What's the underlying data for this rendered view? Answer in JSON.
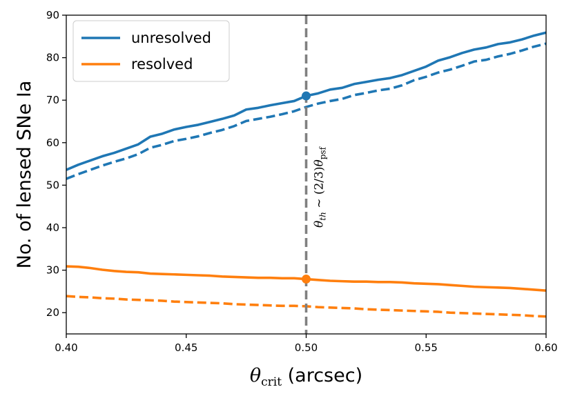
{
  "chart_data": {
    "type": "line",
    "title": "",
    "xlabel_math": "θ",
    "xlabel_sub": "crit",
    "xlabel_unit": " (arcsec)",
    "ylabel": "No. of lensed SNe Ia",
    "xlim": [
      0.4,
      0.6
    ],
    "ylim": [
      15,
      90
    ],
    "xticks": [
      0.4,
      0.45,
      0.5,
      0.55,
      0.6
    ],
    "xtick_labels": [
      "0.40",
      "0.45",
      "0.50",
      "0.55",
      "0.60"
    ],
    "yticks": [
      20,
      30,
      40,
      50,
      60,
      70,
      80,
      90
    ],
    "ytick_labels": [
      "20",
      "30",
      "40",
      "50",
      "60",
      "70",
      "80",
      "90"
    ],
    "grid": false,
    "legend_position": "top-left",
    "legend": [
      {
        "label": "unresolved",
        "color": "#1f77b4"
      },
      {
        "label": "resolved",
        "color": "#ff7f0e"
      }
    ],
    "x": [
      0.4,
      0.405,
      0.41,
      0.415,
      0.42,
      0.425,
      0.43,
      0.435,
      0.44,
      0.445,
      0.45,
      0.455,
      0.46,
      0.465,
      0.47,
      0.475,
      0.48,
      0.485,
      0.49,
      0.495,
      0.5,
      0.505,
      0.51,
      0.515,
      0.52,
      0.525,
      0.53,
      0.535,
      0.54,
      0.545,
      0.55,
      0.555,
      0.56,
      0.565,
      0.57,
      0.575,
      0.58,
      0.585,
      0.59,
      0.595,
      0.6
    ],
    "series": [
      {
        "name": "unresolved",
        "color": "#1f77b4",
        "style": "solid",
        "values": [
          53.6,
          54.8,
          55.8,
          56.8,
          57.6,
          58.6,
          59.6,
          61.4,
          62.1,
          63.1,
          63.7,
          64.2,
          64.9,
          65.6,
          66.4,
          67.8,
          68.2,
          68.8,
          69.3,
          69.8,
          71.0,
          71.6,
          72.5,
          72.9,
          73.8,
          74.3,
          74.8,
          75.2,
          75.9,
          76.9,
          77.9,
          79.3,
          80.1,
          81.1,
          81.9,
          82.4,
          83.2,
          83.6,
          84.3,
          85.2,
          85.9
        ]
      },
      {
        "name": "unresolved (dashed)",
        "color": "#1f77b4",
        "style": "dashed",
        "values": [
          51.5,
          52.6,
          53.6,
          54.6,
          55.5,
          56.3,
          57.3,
          58.8,
          59.5,
          60.4,
          60.9,
          61.5,
          62.3,
          63.0,
          63.9,
          65.1,
          65.6,
          66.1,
          66.7,
          67.4,
          68.4,
          69.2,
          69.8,
          70.3,
          71.2,
          71.7,
          72.3,
          72.7,
          73.5,
          74.7,
          75.5,
          76.5,
          77.2,
          78.1,
          79.1,
          79.5,
          80.3,
          80.9,
          81.7,
          82.6,
          83.3
        ]
      },
      {
        "name": "resolved",
        "color": "#ff7f0e",
        "style": "solid",
        "values": [
          30.9,
          30.8,
          30.5,
          30.1,
          29.8,
          29.6,
          29.5,
          29.2,
          29.1,
          29.0,
          28.9,
          28.8,
          28.7,
          28.5,
          28.4,
          28.3,
          28.2,
          28.2,
          28.1,
          28.1,
          27.9,
          27.7,
          27.5,
          27.4,
          27.3,
          27.3,
          27.2,
          27.2,
          27.1,
          26.9,
          26.8,
          26.7,
          26.5,
          26.3,
          26.1,
          26.0,
          25.9,
          25.8,
          25.6,
          25.4,
          25.2
        ]
      },
      {
        "name": "resolved (dashed)",
        "color": "#ff7f0e",
        "style": "dashed",
        "values": [
          23.9,
          23.7,
          23.6,
          23.4,
          23.3,
          23.1,
          23.0,
          22.9,
          22.8,
          22.6,
          22.5,
          22.4,
          22.3,
          22.2,
          22.0,
          21.9,
          21.8,
          21.7,
          21.6,
          21.6,
          21.5,
          21.3,
          21.2,
          21.1,
          21.0,
          20.8,
          20.7,
          20.6,
          20.5,
          20.4,
          20.3,
          20.2,
          20.0,
          19.9,
          19.8,
          19.7,
          19.6,
          19.5,
          19.4,
          19.2,
          19.1
        ]
      }
    ],
    "vline": {
      "x": 0.5,
      "color": "#808080",
      "style": "dashed"
    },
    "markers": [
      {
        "x": 0.5,
        "y": 71.0,
        "color": "#1f77b4"
      },
      {
        "x": 0.5,
        "y": 27.9,
        "color": "#ff7f0e"
      }
    ],
    "annotation": {
      "label": "θth ∼ (2/3)θpsf",
      "math": "θ",
      "sub_th": "th",
      "mid": " ∼ (2/3)",
      "sub_psf": "psf"
    }
  }
}
